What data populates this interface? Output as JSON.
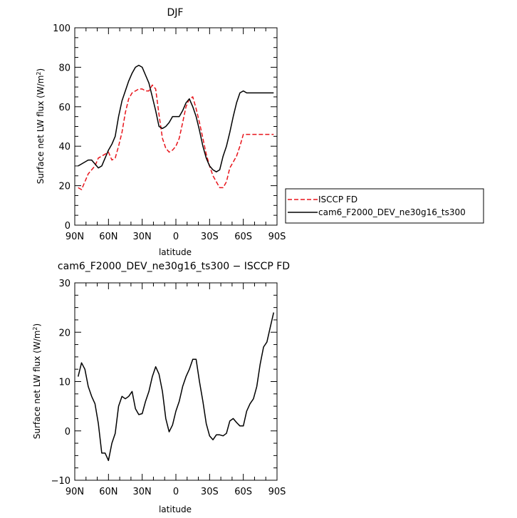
{
  "chart_data": [
    {
      "type": "line",
      "title": "DJF",
      "xlabel": "latitude",
      "ylabel": "Surface net LW flux (W/m²)",
      "xlim": [
        90,
        -90
      ],
      "ylim": [
        0,
        100
      ],
      "xticks": [
        90,
        60,
        30,
        0,
        -30,
        -60,
        -90
      ],
      "xtick_labels": [
        "90N",
        "60N",
        "30N",
        "0",
        "30S",
        "60S",
        "90S"
      ],
      "yticks": [
        0,
        20,
        40,
        60,
        80,
        100
      ],
      "ytick_labels": [
        "0",
        "20",
        "40",
        "60",
        "80",
        "100"
      ],
      "legend_position": "right-bottom outside",
      "series": [
        {
          "name": "ISCCP FD",
          "color": "#e8141b",
          "dash": "dashed",
          "x": [
            87,
            84,
            81,
            78,
            75,
            72,
            69,
            66,
            63,
            60,
            57,
            54,
            51,
            48,
            45,
            42,
            39,
            36,
            33,
            30,
            27,
            24,
            21,
            18,
            15,
            12,
            9,
            6,
            3,
            0,
            -3,
            -6,
            -9,
            -12,
            -15,
            -18,
            -21,
            -24,
            -27,
            -30,
            -33,
            -36,
            -39,
            -42,
            -45,
            -48,
            -51,
            -54,
            -57,
            -60,
            -63,
            -66,
            -69,
            -72,
            -75,
            -78,
            -81,
            -84,
            -87
          ],
          "y": [
            19,
            18,
            22,
            26,
            28,
            30,
            34,
            35,
            36,
            37,
            33,
            34,
            40,
            47,
            57,
            64,
            67,
            68,
            69,
            69,
            68,
            68,
            71,
            69,
            56,
            44,
            39,
            37,
            38,
            40,
            44,
            52,
            60,
            64,
            65,
            59,
            52,
            44,
            36,
            30,
            25,
            22,
            19,
            19,
            22,
            29,
            32,
            35,
            40,
            46,
            46,
            46,
            46,
            46,
            46,
            46,
            46,
            46,
            46
          ]
        },
        {
          "name": "cam6_F2000_DEV_ne30g16_ts300",
          "color": "#000000",
          "dash": "solid",
          "x": [
            87,
            84,
            81,
            78,
            75,
            72,
            69,
            66,
            63,
            60,
            57,
            54,
            51,
            48,
            45,
            42,
            39,
            36,
            33,
            30,
            27,
            24,
            21,
            18,
            15,
            12,
            9,
            6,
            3,
            0,
            -3,
            -6,
            -9,
            -12,
            -15,
            -18,
            -21,
            -24,
            -27,
            -30,
            -33,
            -36,
            -39,
            -42,
            -45,
            -48,
            -51,
            -54,
            -57,
            -60,
            -63,
            -66,
            -69,
            -72,
            -75,
            -78,
            -81,
            -84,
            -87
          ],
          "y": [
            30,
            31,
            32,
            33,
            33,
            31,
            29,
            30,
            34,
            38,
            41,
            45,
            55,
            63,
            68,
            73,
            77,
            80,
            81,
            80,
            76,
            72,
            65,
            58,
            50,
            49,
            50,
            52,
            55,
            55,
            55,
            58,
            62,
            64,
            60,
            55,
            48,
            40,
            34,
            30,
            28,
            27,
            28,
            35,
            40,
            47,
            55,
            62,
            67,
            68,
            67,
            67,
            67,
            67,
            67,
            67,
            67,
            67,
            67
          ]
        }
      ]
    },
    {
      "type": "line",
      "title": "cam6_F2000_DEV_ne30g16_ts300 − ISCCP FD",
      "xlabel": "latitude",
      "ylabel": "Surface net LW flux (W/m²)",
      "xlim": [
        90,
        -90
      ],
      "ylim": [
        -10,
        30
      ],
      "xticks": [
        90,
        60,
        30,
        0,
        -30,
        -60,
        -90
      ],
      "xtick_labels": [
        "90N",
        "60N",
        "30N",
        "0",
        "30S",
        "60S",
        "90S"
      ],
      "yticks": [
        -10,
        0,
        10,
        20,
        30
      ],
      "ytick_labels": [
        "−10",
        "0",
        "10",
        "20",
        "30"
      ],
      "series": [
        {
          "color": "#000000",
          "dash": "solid",
          "x": [
            87,
            84,
            81,
            78,
            75,
            72,
            69,
            66,
            63,
            60,
            57,
            54,
            51,
            48,
            45,
            42,
            39,
            36,
            33,
            30,
            27,
            24,
            21,
            18,
            15,
            12,
            9,
            6,
            3,
            0,
            -3,
            -6,
            -9,
            -12,
            -15,
            -18,
            -21,
            -24,
            -27,
            -30,
            -33,
            -36,
            -39,
            -42,
            -45,
            -48,
            -51,
            -54,
            -57,
            -60,
            -63,
            -66,
            -69,
            -72,
            -75,
            -78,
            -81,
            -84,
            -87
          ],
          "y": [
            11,
            13.8,
            12.5,
            9,
            7,
            5.5,
            1.5,
            -4.5,
            -4.5,
            -6,
            -2.5,
            -0.5,
            5,
            7,
            6.5,
            7,
            8,
            4.5,
            3.3,
            3.5,
            6,
            8,
            11,
            13,
            11.5,
            8,
            2.5,
            -0.2,
            1.2,
            4,
            6,
            9,
            11,
            12.5,
            14.5,
            14.5,
            10,
            6,
            1.5,
            -1,
            -1.8,
            -0.8,
            -0.8,
            -1,
            -0.5,
            2,
            2.5,
            1.7,
            1,
            1,
            4,
            5.5,
            6.5,
            9,
            13.5,
            17,
            18,
            21,
            24
          ]
        }
      ]
    }
  ]
}
